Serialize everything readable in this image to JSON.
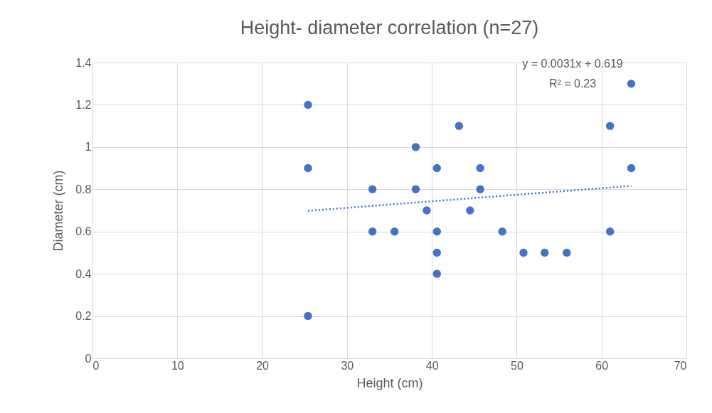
{
  "chart_data": {
    "type": "scatter",
    "title": "Height- diameter correlation (n=27)",
    "xlabel": "Height (cm)",
    "ylabel": "Diameter (cm)",
    "xlim": [
      0,
      70
    ],
    "xticks": [
      0,
      10,
      20,
      30,
      40,
      50,
      60,
      70
    ],
    "ylim": [
      0,
      1.4
    ],
    "yticks": [
      0,
      0.2,
      0.4,
      0.6,
      0.8,
      1,
      1.2,
      1.4
    ],
    "grid": true,
    "marker": "circle",
    "series": [
      {
        "color": "#4472c4",
        "x": [
          25.4,
          25.4,
          25.4,
          33.0,
          33.0,
          35.6,
          38.1,
          38.1,
          39.4,
          40.6,
          40.6,
          40.6,
          40.6,
          43.2,
          44.5,
          45.7,
          45.7,
          48.3,
          50.8,
          53.3,
          55.9,
          61.0,
          61.0,
          63.5,
          63.5
        ],
        "values": [
          1.2,
          0.9,
          0.2,
          0.8,
          0.6,
          0.6,
          1.0,
          0.8,
          0.7,
          0.9,
          0.6,
          0.5,
          0.4,
          1.1,
          0.7,
          0.9,
          0.8,
          0.6,
          0.5,
          0.5,
          0.5,
          1.1,
          0.6,
          1.3,
          0.9
        ]
      },
      {
        "type": "line",
        "color": "#4472c4",
        "line_style": "dotted",
        "marker": "none",
        "x": [
          25.4,
          63.5
        ],
        "values": [
          0.698,
          0.816
        ]
      }
    ],
    "annotations": [
      "y = 0.0031x + 0.619",
      "R² = 0.23"
    ]
  }
}
